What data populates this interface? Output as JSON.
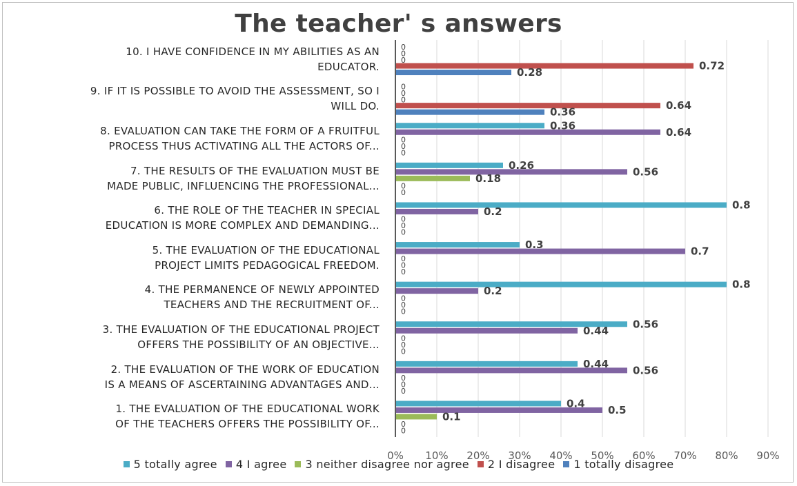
{
  "chart_data": {
    "type": "bar",
    "orientation": "horizontal",
    "title": "The teacher' s answers",
    "categories": [
      "1. THE EVALUATION OF THE EDUCATIONAL WORK OF THE TEACHERS OFFERS THE POSSIBILITY OF...",
      "2. THE EVALUATION OF THE WORK OF EDUCATION IS A MEANS OF ASCERTAINING ADVANTAGES AND...",
      "3. THE EVALUATION OF THE EDUCATIONAL PROJECT OFFERS THE POSSIBILITY OF AN OBJECTIVE...",
      "4. THE PERMANENCE OF NEWLY APPOINTED TEACHERS AND THE RECRUITMENT OF...",
      "5. THE EVALUATION OF THE EDUCATIONAL PROJECT LIMITS PEDAGOGICAL FREEDOM.",
      "6. THE ROLE OF THE TEACHER IN SPECIAL EDUCATION IS MORE COMPLEX AND DEMANDING...",
      "7. THE RESULTS OF THE EVALUATION MUST BE MADE PUBLIC, INFLUENCING THE PROFESSIONAL...",
      "8. EVALUATION CAN TAKE THE FORM OF A FRUITFUL PROCESS THUS ACTIVATING ALL THE ACTORS OF...",
      "9. IF IT IS POSSIBLE TO AVOID THE ASSESSMENT, SO I WILL DO.",
      "10. I HAVE CONFIDENCE IN MY ABILITIES AS AN EDUCATOR."
    ],
    "category_lines": [
      [
        "1. THE EVALUATION OF THE EDUCATIONAL WORK",
        "OF THE TEACHERS OFFERS THE POSSIBILITY OF..."
      ],
      [
        "2. THE EVALUATION OF THE WORK OF EDUCATION",
        "IS A MEANS OF ASCERTAINING ADVANTAGES AND..."
      ],
      [
        "3. THE EVALUATION OF THE EDUCATIONAL PROJECT",
        "OFFERS THE POSSIBILITY OF AN OBJECTIVE..."
      ],
      [
        "4. THE PERMANENCE OF NEWLY APPOINTED",
        "TEACHERS AND THE RECRUITMENT OF..."
      ],
      [
        "5. THE EVALUATION OF THE EDUCATIONAL",
        "PROJECT LIMITS PEDAGOGICAL FREEDOM."
      ],
      [
        "6. THE ROLE OF THE TEACHER IN SPECIAL",
        "EDUCATION IS MORE COMPLEX AND DEMANDING..."
      ],
      [
        "7. THE RESULTS OF THE EVALUATION MUST BE",
        "MADE PUBLIC, INFLUENCING THE PROFESSIONAL..."
      ],
      [
        "8. EVALUATION CAN TAKE THE FORM OF A FRUITFUL",
        "PROCESS THUS ACTIVATING ALL THE ACTORS OF..."
      ],
      [
        "9. IF IT IS POSSIBLE TO AVOID THE ASSESSMENT, SO I",
        "WILL DO."
      ],
      [
        "10. I HAVE CONFIDENCE IN MY ABILITIES AS AN",
        "EDUCATOR."
      ]
    ],
    "series": [
      {
        "name": "5 totally agree",
        "color": "#4bacc6",
        "values": [
          0.4,
          0.44,
          0.56,
          0.8,
          0.3,
          0.8,
          0.26,
          0.36,
          0,
          0
        ],
        "labels": [
          "0.4",
          "0.44",
          "0.56",
          "0.8",
          "0.3",
          "0.8",
          "0.26",
          "0.36",
          "0",
          "0"
        ]
      },
      {
        "name": "4 I agree",
        "color": "#8064a2",
        "values": [
          0.5,
          0.56,
          0.44,
          0.2,
          0.7,
          0.2,
          0.56,
          0.64,
          0,
          0
        ],
        "labels": [
          "0.5",
          "0.56",
          "0.44",
          "0.2",
          "0.7",
          "0.2",
          "0.56",
          "0.64",
          "0",
          "0"
        ]
      },
      {
        "name": "3 neither disagree nor agree",
        "color": "#9bbb59",
        "values": [
          0.1,
          0,
          0,
          0,
          0,
          0,
          0.18,
          0,
          0,
          0
        ],
        "labels": [
          "0.1",
          "0",
          "0",
          "0",
          "0",
          "0",
          "0.18",
          "0",
          "0",
          "0"
        ]
      },
      {
        "name": "2 I disagree",
        "color": "#c0504d",
        "values": [
          0,
          0,
          0,
          0,
          0,
          0,
          0,
          0,
          0.64,
          0.72
        ],
        "labels": [
          "0",
          "0",
          "0",
          "0",
          "0",
          "0",
          "0",
          "0",
          "0.64",
          "0.72"
        ]
      },
      {
        "name": "1 totally disagree",
        "color": "#4f81bd",
        "values": [
          0,
          0,
          0,
          0,
          0,
          0,
          0,
          0,
          0.36,
          0.28
        ],
        "labels": [
          "0",
          "0",
          "0",
          "0",
          "0",
          "0",
          "0",
          "0",
          "0.36",
          "0.28"
        ]
      }
    ],
    "x_ticks": [
      "0%",
      "10%",
      "20%",
      "30%",
      "40%",
      "50%",
      "60%",
      "70%",
      "80%",
      "90%"
    ],
    "xlim": [
      0,
      0.9
    ],
    "grid": true,
    "legend_position": "bottom",
    "axis_color": "#595959",
    "grid_color": "#d9d9d9"
  }
}
